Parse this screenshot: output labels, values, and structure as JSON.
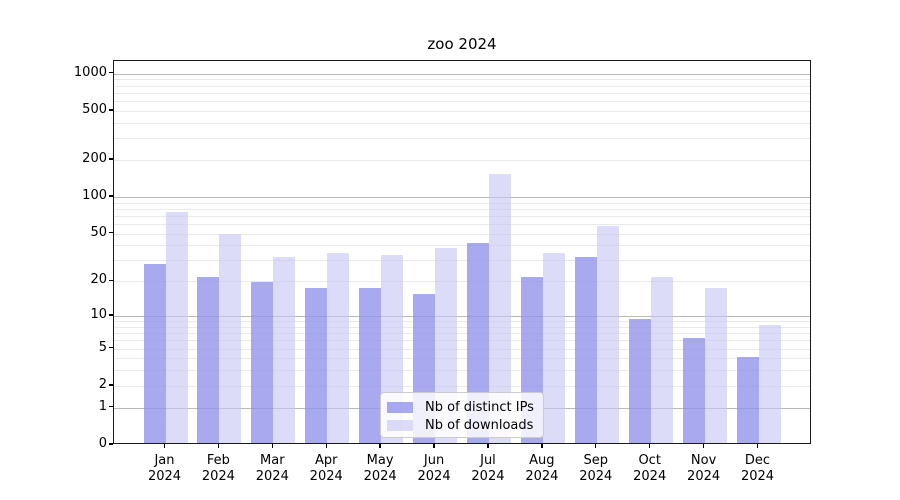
{
  "chart_data": {
    "type": "bar",
    "title": "zoo 2024",
    "categories": [
      "Jan 2024",
      "Feb 2024",
      "Mar 2024",
      "Apr 2024",
      "May 2024",
      "Jun 2024",
      "Jul 2024",
      "Aug 2024",
      "Sep 2024",
      "Oct 2024",
      "Nov 2024",
      "Dec 2024"
    ],
    "series": [
      {
        "name": "Nb of distinct IPs",
        "color": "rgba(148,148,236,0.8)",
        "values": [
          27,
          21,
          19,
          17,
          17,
          15,
          40,
          21,
          31,
          9,
          6,
          4
        ]
      },
      {
        "name": "Nb of downloads",
        "color": "rgba(198,198,244,0.62)",
        "values": [
          72,
          48,
          31,
          33,
          32,
          37,
          148,
          33,
          56,
          21,
          17,
          8
        ]
      }
    ],
    "y_scale": "log1p",
    "y_ticks": [
      0,
      1,
      2,
      5,
      10,
      20,
      50,
      100,
      200,
      500,
      1000
    ],
    "ylim": [
      0,
      1266
    ],
    "grid": "both",
    "legend_position": "lower-center",
    "colors": {
      "grid_major": "#b9b9b9",
      "grid_minor": "#e9e9e9",
      "spine": "#1a1a1a",
      "text": "#000000"
    }
  }
}
